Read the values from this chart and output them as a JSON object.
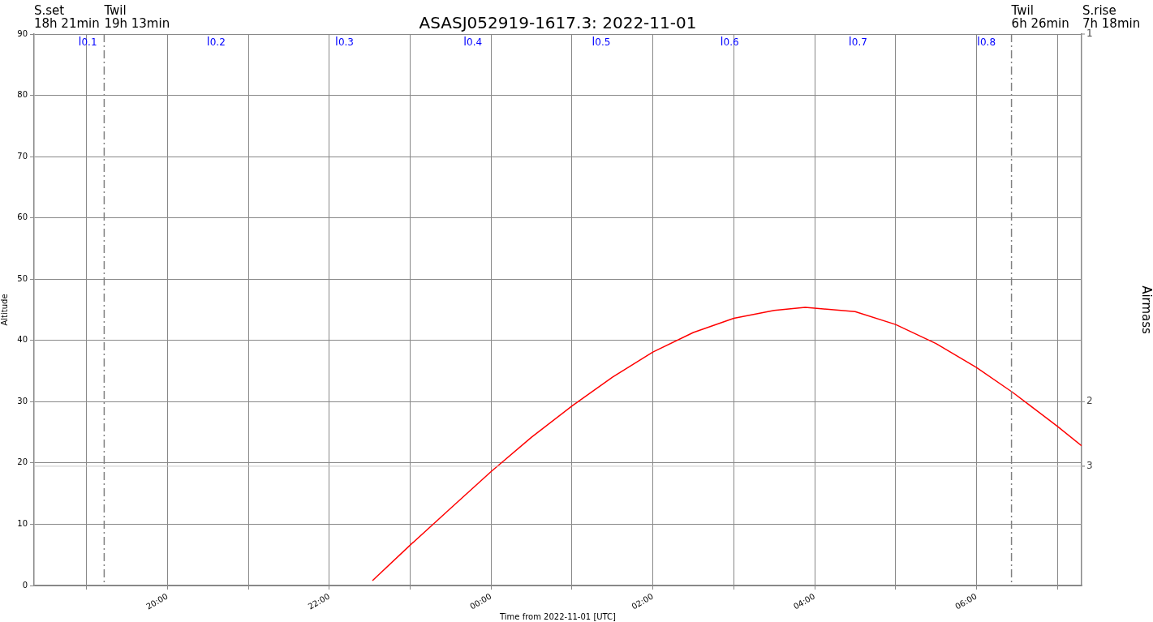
{
  "chart_data": {
    "type": "line",
    "title": "ASASJ052919-1617.3: 2022-11-01",
    "xlabel": "Time from 2022-11-01 [UTC]",
    "ylabel": "Altitude",
    "y2label": "Airmass",
    "xlim": [
      "2022-11-01T18:21",
      "2022-11-02T07:18"
    ],
    "xticks": [
      {
        "value": "2022-11-01T19:00",
        "label": null
      },
      {
        "value": "2022-11-01T20:00",
        "label": "20:00"
      },
      {
        "value": "2022-11-01T21:00",
        "label": null
      },
      {
        "value": "2022-11-01T22:00",
        "label": "22:00"
      },
      {
        "value": "2022-11-01T23:00",
        "label": null
      },
      {
        "value": "2022-11-02T00:00",
        "label": "00:00"
      },
      {
        "value": "2022-11-02T01:00",
        "label": null
      },
      {
        "value": "2022-11-02T02:00",
        "label": "02:00"
      },
      {
        "value": "2022-11-02T03:00",
        "label": null
      },
      {
        "value": "2022-11-02T04:00",
        "label": "04:00"
      },
      {
        "value": "2022-11-02T05:00",
        "label": null
      },
      {
        "value": "2022-11-02T06:00",
        "label": "06:00"
      },
      {
        "value": "2022-11-02T07:00",
        "label": null
      }
    ],
    "x2lim": [
      0.057,
      0.873
    ],
    "x2ticks": [
      0.1,
      0.2,
      0.3,
      0.4,
      0.5,
      0.6,
      0.7,
      0.8
    ],
    "ylim": [
      0,
      90
    ],
    "yticks": [
      0,
      10,
      20,
      30,
      40,
      50,
      60,
      70,
      80,
      90
    ],
    "grid": true,
    "marker": "none",
    "line_style": "solid",
    "series": [
      {
        "color": "#ff0000",
        "x": [
          "2022-11-01T22:32",
          "2022-11-01T23:00",
          "2022-11-01T23:30",
          "2022-11-02T00:00",
          "2022-11-02T00:30",
          "2022-11-02T01:00",
          "2022-11-02T01:30",
          "2022-11-02T02:00",
          "2022-11-02T02:30",
          "2022-11-02T03:00",
          "2022-11-02T03:30",
          "2022-11-02T03:53",
          "2022-11-02T04:30",
          "2022-11-02T05:00",
          "2022-11-02T05:30",
          "2022-11-02T06:00",
          "2022-11-02T06:27",
          "2022-11-02T07:00",
          "2022-11-02T07:18"
        ],
        "values": [
          0.8,
          6.6,
          12.6,
          18.6,
          24.2,
          29.3,
          34.0,
          38.1,
          41.3,
          43.6,
          44.9,
          45.4,
          44.7,
          42.6,
          39.5,
          35.6,
          31.5,
          26.0,
          22.8
        ]
      }
    ],
    "ref_lines": [
      {
        "axis": "x",
        "value": "2022-11-01T19:13",
        "label": "Twil\n19h 13min",
        "color": "#808080",
        "line_style": "dashed"
      },
      {
        "axis": "x",
        "value": "2022-11-02T06:26",
        "label": "Twil\n6h 26min",
        "color": "#808080",
        "line_style": "dashed"
      },
      {
        "axis": "y",
        "value": 19.47,
        "color": "#c8c8c8"
      }
    ],
    "annotations": [
      "S.set\n18h 21min",
      "S.rise\n7h 18min",
      "1",
      "2",
      "3"
    ]
  }
}
